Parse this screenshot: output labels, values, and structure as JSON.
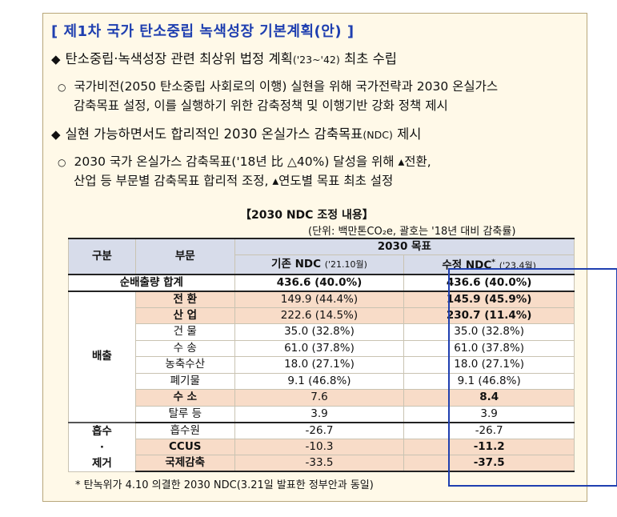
{
  "title": "[ 제1차 국가 탄소중립 녹색성장 기본계획(안) ]",
  "bullets": [
    {
      "symbol": "◆",
      "parts": [
        "탄소중립·녹색성장 관련 최상위 법정 계획",
        "('23~'42)",
        " 최초 수립"
      ],
      "sub": [
        "○",
        "국가비전(2050 탄소중립 사회로의 이행) 실현을 위해 국가전략과 2030 온실가스",
        "감축목표 설정, 이를 실행하기 위한 감축정책 및 이행기반 강화 정책 제시"
      ]
    },
    {
      "symbol": "◆",
      "parts": [
        "실현 가능하면서도 합리적인 2030 온실가스 감축목표",
        "(NDC)",
        " 제시"
      ],
      "sub": [
        "○",
        "2030 국가 온실가스 감축목표('18년 比 △40%) 달성을 위해 ▴전환,",
        "산업 등 부문별 감축목표 합리적 조정, ▴연도별 목표 최초 설정"
      ]
    }
  ],
  "table": {
    "title": "【2030 NDC 조정 내용】",
    "unit": "(단위: 백만톤CO₂e, 괄호는 '18년 대비 감축률)",
    "headers": {
      "gubun": "구분",
      "bumun": "부문",
      "target": "2030 목표",
      "existing": "기존 NDC",
      "existing_date": "('21.10월)",
      "revised": "수정 NDC",
      "revised_mark": "*",
      "revised_date": "('23.4월)"
    },
    "total": {
      "label": "순배출량 합계",
      "existing": "436.6 (40.0%)",
      "revised": "436.6 (40.0%)"
    },
    "groups": {
      "emission": "배출",
      "absorb_1": "흡수",
      "absorb_dot": "·",
      "absorb_2": "제거"
    },
    "emission_rows": [
      {
        "sector": "전 환",
        "existing": "149.9 (44.4%)",
        "revised": "145.9 (45.9%)",
        "changed": true
      },
      {
        "sector": "산 업",
        "existing": "222.6 (14.5%)",
        "revised": "230.7 (11.4%)",
        "changed": true
      },
      {
        "sector": "건 물",
        "existing": "35.0 (32.8%)",
        "revised": "35.0 (32.8%)",
        "changed": false
      },
      {
        "sector": "수 송",
        "existing": "61.0 (37.8%)",
        "revised": "61.0 (37.8%)",
        "changed": false
      },
      {
        "sector": "농축수산",
        "existing": "18.0 (27.1%)",
        "revised": "18.0 (27.1%)",
        "changed": false
      },
      {
        "sector": "폐기물",
        "existing": "9.1 (46.8%)",
        "revised": "9.1 (46.8%)",
        "changed": false
      },
      {
        "sector": "수 소",
        "existing": "7.6",
        "revised": "8.4",
        "changed": true
      },
      {
        "sector": "탈루 등",
        "existing": "3.9",
        "revised": "3.9",
        "changed": false
      }
    ],
    "absorb_rows": [
      {
        "sector": "흡수원",
        "existing": "-26.7",
        "revised": "-26.7",
        "changed": false
      },
      {
        "sector": "CCUS",
        "existing": "-10.3",
        "revised": "-11.2",
        "changed": true
      },
      {
        "sector": "국제감축",
        "existing": "-33.5",
        "revised": "-37.5",
        "changed": true
      }
    ]
  },
  "footnote": "* 탄녹위가 4.10 의결한 2030 NDC(3.21일 발표한 정부안과 동일)",
  "colors": {
    "title_blue": "#1f3fb0",
    "highlight": "#f8dcc8",
    "header": "#d7dcea",
    "panel": "#fff9e8"
  }
}
